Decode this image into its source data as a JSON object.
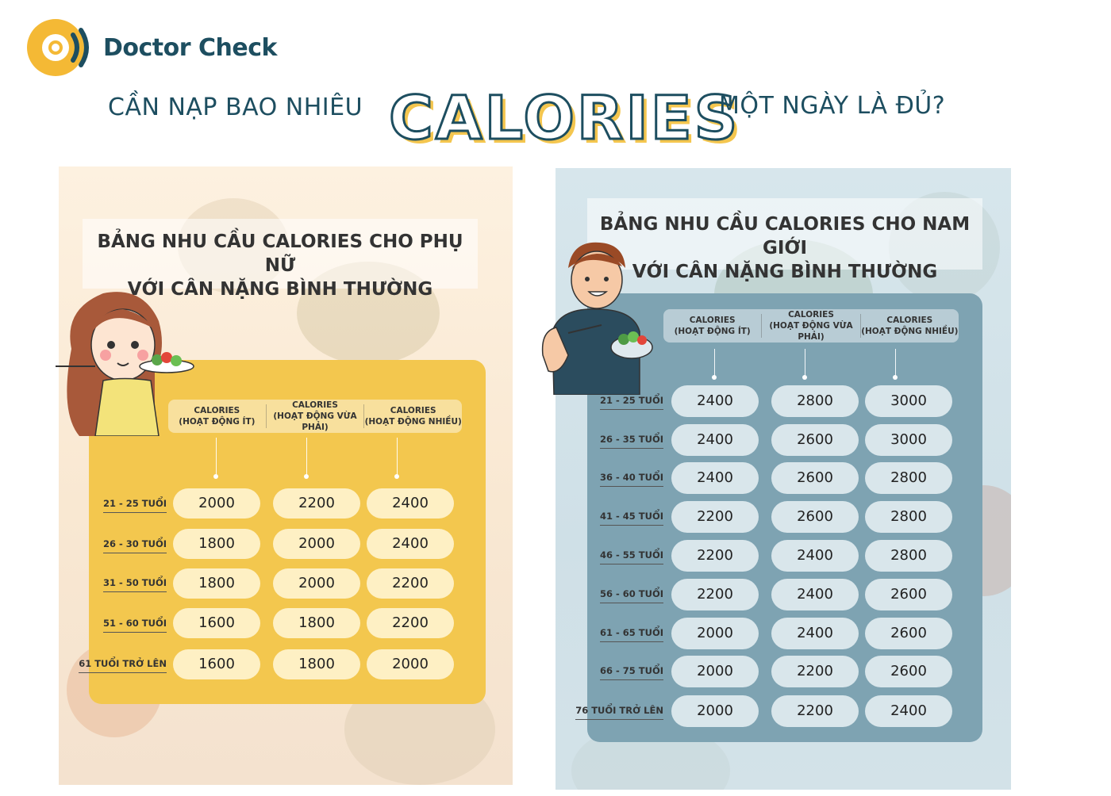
{
  "brand": {
    "name": "Doctor Check",
    "logo_icon": "doctor-check-logo-icon"
  },
  "heading": {
    "left": "CẦN NẠP BAO NHIÊU",
    "highlight": "CALORIES",
    "right": "MỘT NGÀY LÀ ĐỦ?"
  },
  "colors": {
    "navy": "#1d4e60",
    "gold": "#f3c74e",
    "blue_gray": "#7ea3b2"
  },
  "women": {
    "title_line1": "BẢNG NHU CẦU CALORIES CHO PHỤ NỮ",
    "title_line2": "VỚI CÂN NẶNG BÌNH THƯỜNG",
    "columns": [
      {
        "line1": "CALORIES",
        "line2": "(HOẠT ĐỘNG ÍT)"
      },
      {
        "line1": "CALORIES",
        "line2": "(HOẠT ĐỘNG VỪA PHẢI)"
      },
      {
        "line1": "CALORIES",
        "line2": "(HOẠT ĐỘNG NHIỀU)"
      }
    ],
    "rows": [
      {
        "age": "21 - 25 TUỔI",
        "values": [
          "2000",
          "2200",
          "2400"
        ]
      },
      {
        "age": "26 - 30 TUỔI",
        "values": [
          "1800",
          "2000",
          "2400"
        ]
      },
      {
        "age": "31 - 50 TUỔI",
        "values": [
          "1800",
          "2000",
          "2200"
        ]
      },
      {
        "age": "51 - 60 TUỔI",
        "values": [
          "1600",
          "1800",
          "2200"
        ]
      },
      {
        "age": "61 TUỔI TRỞ LÊN",
        "values": [
          "1600",
          "1800",
          "2000"
        ]
      }
    ]
  },
  "men": {
    "title_line1": "BẢNG NHU CẦU CALORIES CHO NAM GIỚI",
    "title_line2": "VỚI CÂN NẶNG BÌNH THƯỜNG",
    "columns": [
      {
        "line1": "CALORIES",
        "line2": "(HOẠT ĐỘNG ÍT)"
      },
      {
        "line1": "CALORIES",
        "line2": "(HOẠT ĐỘNG VỪA PHẢI)"
      },
      {
        "line1": "CALORIES",
        "line2": "(HOẠT ĐỘNG NHIỀU)"
      }
    ],
    "rows": [
      {
        "age": "21 - 25 TUỔI",
        "values": [
          "2400",
          "2800",
          "3000"
        ]
      },
      {
        "age": "26 - 35 TUỔI",
        "values": [
          "2400",
          "2600",
          "3000"
        ]
      },
      {
        "age": "36 - 40 TUỔI",
        "values": [
          "2400",
          "2600",
          "2800"
        ]
      },
      {
        "age": "41 - 45 TUỔI",
        "values": [
          "2200",
          "2600",
          "2800"
        ]
      },
      {
        "age": "46 - 55 TUỔI",
        "values": [
          "2200",
          "2400",
          "2800"
        ]
      },
      {
        "age": "56 - 60 TUỔI",
        "values": [
          "2200",
          "2400",
          "2600"
        ]
      },
      {
        "age": "61 - 65 TUỔI",
        "values": [
          "2000",
          "2400",
          "2600"
        ]
      },
      {
        "age": "66 - 75 TUỔI",
        "values": [
          "2000",
          "2200",
          "2600"
        ]
      },
      {
        "age": "76 TUỔI TRỞ LÊN",
        "values": [
          "2000",
          "2200",
          "2400"
        ]
      }
    ]
  }
}
